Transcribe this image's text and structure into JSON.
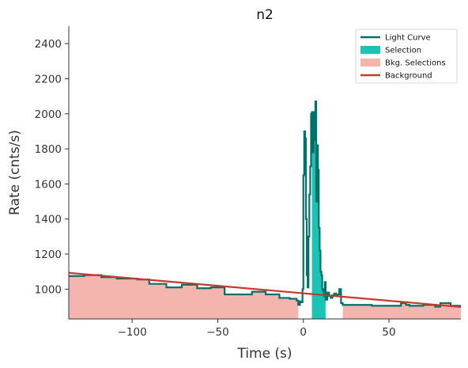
{
  "chart_data": {
    "type": "line",
    "title": "n2",
    "xlabel": "Time (s)",
    "ylabel": "Rate (cnts/s)",
    "xlim": [
      -137,
      92
    ],
    "ylim": [
      830,
      2500
    ],
    "xticks": [
      -100,
      -50,
      0,
      50
    ],
    "xtick_labels": [
      "−100",
      "−50",
      "0",
      "50"
    ],
    "yticks": [
      1000,
      1200,
      1400,
      1600,
      1800,
      2000,
      2200,
      2400
    ],
    "ytick_labels": [
      "1000",
      "1200",
      "1400",
      "1600",
      "1800",
      "2000",
      "2200",
      "2400"
    ],
    "grid": false,
    "legend_position": "top-right",
    "colors": {
      "light_curve": "#00716b",
      "selection": "#1cc3b5",
      "bkg_selection": "#f4b5ae",
      "background": "#c23b2d"
    },
    "legend": [
      {
        "label": "Light Curve",
        "kind": "line",
        "color": "#00716b"
      },
      {
        "label": "Selection",
        "kind": "patch",
        "color": "#1cc3b5"
      },
      {
        "label": "Bkg. Selections",
        "kind": "patch",
        "color": "#f4b5ae"
      },
      {
        "label": "Background",
        "kind": "line",
        "color": "#c23b2d"
      }
    ],
    "light_curve": {
      "x": [
        -137,
        -128,
        -118,
        -109,
        -97,
        -90,
        -80,
        -71,
        -62,
        -54,
        -46,
        -30,
        -22,
        -14,
        -8,
        -5,
        -4,
        -3,
        -2,
        -1,
        -0.5,
        0,
        0.5,
        1,
        1.5,
        2,
        2.5,
        3,
        3.5,
        4,
        4.5,
        5,
        5.5,
        6,
        6.5,
        7,
        7.5,
        8,
        8.5,
        9,
        9.5,
        10,
        10.5,
        11,
        11.5,
        12,
        12.5,
        13,
        14,
        15,
        16,
        17,
        18,
        19,
        20,
        21,
        22,
        23,
        30,
        40,
        50,
        57,
        60,
        62,
        70,
        77,
        80,
        86,
        92
      ],
      "y": [
        1075,
        1080,
        1068,
        1060,
        1055,
        1030,
        1010,
        1025,
        1005,
        1010,
        970,
        985,
        970,
        950,
        945,
        945,
        935,
        910,
        930,
        925,
        1000,
        1650,
        1900,
        1860,
        1400,
        1080,
        1010,
        1300,
        1540,
        1700,
        2000,
        2010,
        1780,
        2010,
        1850,
        2070,
        1500,
        1820,
        1680,
        1350,
        1220,
        1100,
        1080,
        1000,
        990,
        960,
        1040,
        940,
        980,
        960,
        950,
        965,
        975,
        960,
        970,
        1000,
        920,
        910,
        910,
        905,
        905,
        920,
        910,
        905,
        910,
        900,
        920,
        905,
        905
      ]
    },
    "selection_interval": [
      5,
      13
    ],
    "bkg_selections": [
      [
        -137,
        -3
      ],
      [
        23,
        92
      ]
    ],
    "background_fit": {
      "x": [
        -137,
        92
      ],
      "y": [
        1093,
        898
      ]
    }
  }
}
